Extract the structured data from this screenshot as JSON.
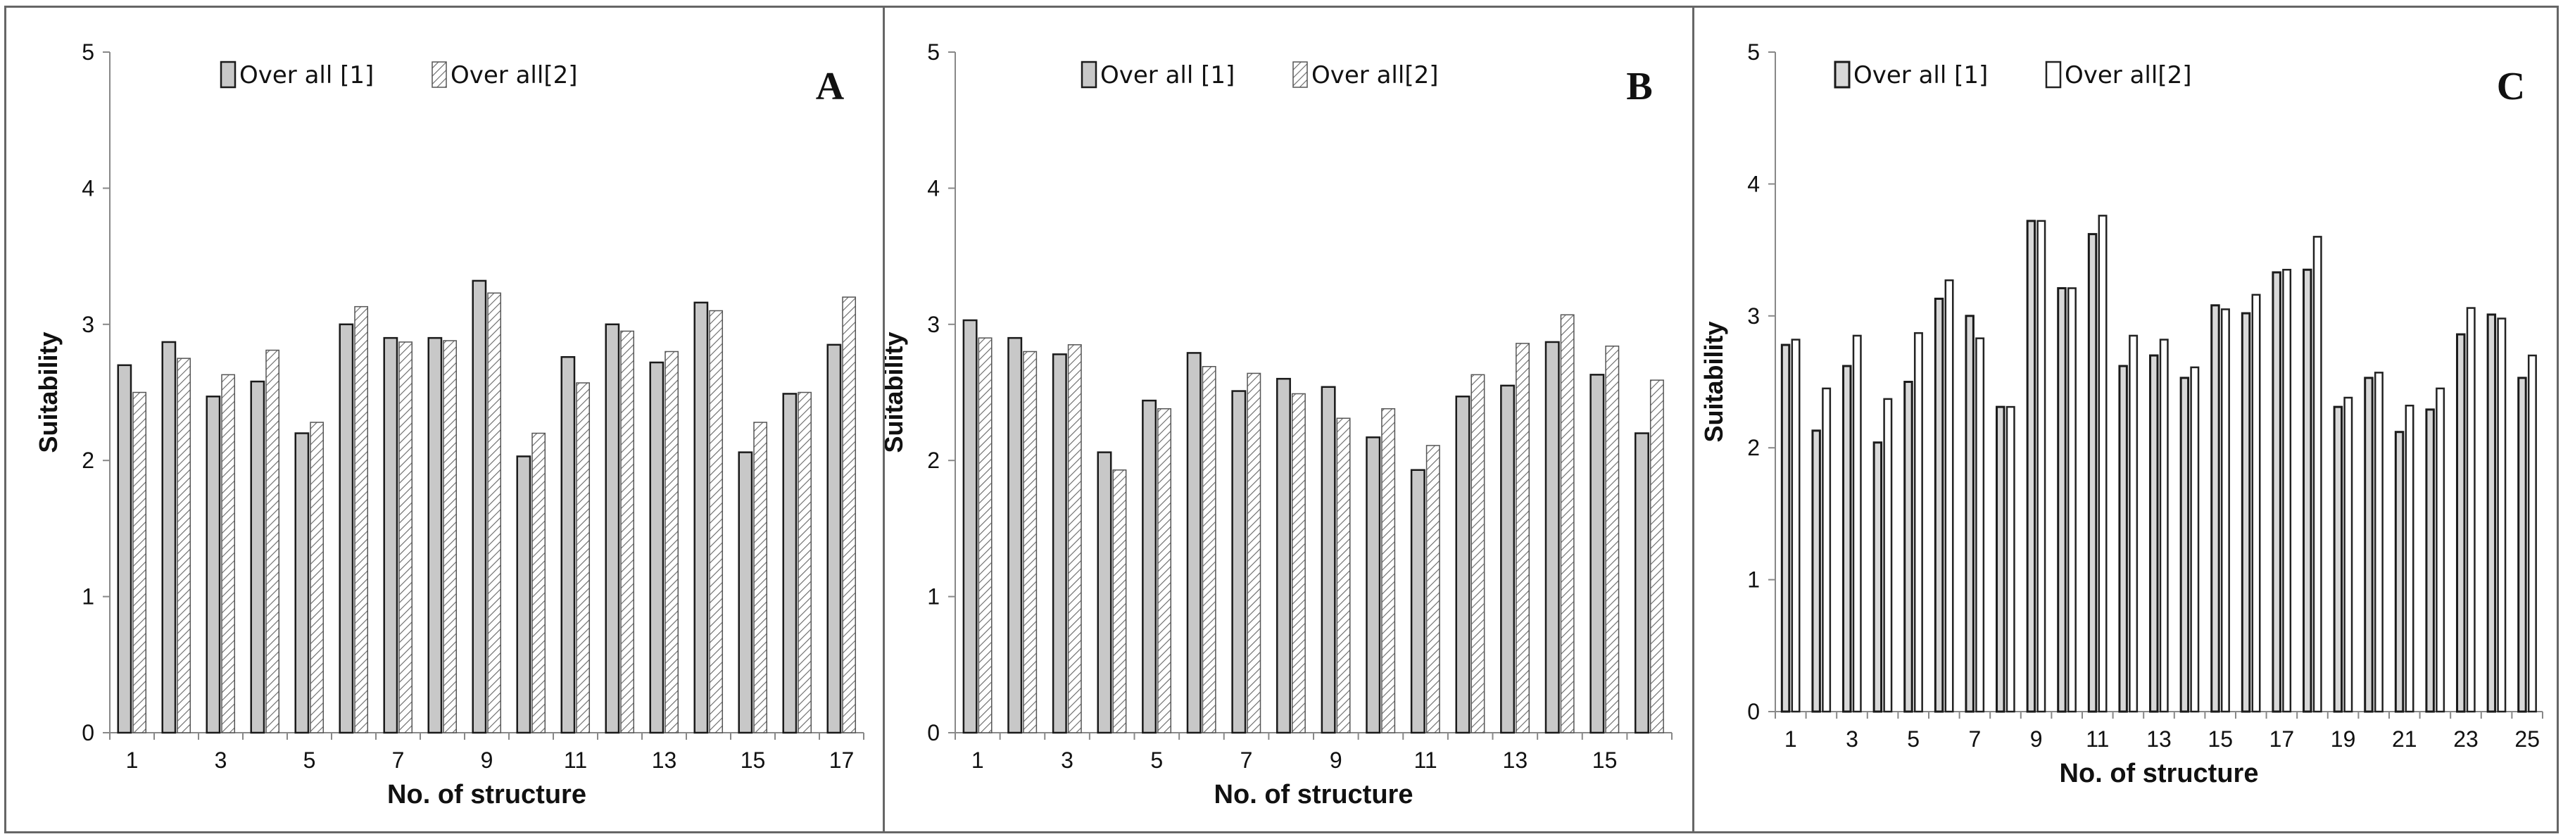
{
  "chart_data": [
    {
      "type": "bar",
      "panel_letter": "A",
      "xlabel": "No. of structure",
      "ylabel": "Suitability",
      "ylim": [
        0,
        5
      ],
      "yticks": [
        0,
        1,
        2,
        3,
        4,
        5
      ],
      "categories": [
        "1",
        "2",
        "3",
        "4",
        "5",
        "6",
        "7",
        "8",
        "9",
        "10",
        "11",
        "12",
        "13",
        "14",
        "15",
        "16",
        "17"
      ],
      "x_tick_labels_shown": [
        "1",
        "",
        "3",
        "",
        "5",
        "",
        "7",
        "",
        "9",
        "",
        "11",
        "",
        "13",
        "",
        "15",
        "",
        "17"
      ],
      "legend": [
        "Over all [1]",
        "Over all[2]"
      ],
      "series": [
        {
          "name": "Over all [1]",
          "values": [
            2.7,
            2.87,
            2.47,
            2.58,
            2.2,
            3.0,
            2.9,
            2.9,
            3.32,
            2.03,
            2.76,
            3.0,
            2.72,
            3.16,
            2.06,
            2.49,
            2.85
          ]
        },
        {
          "name": "Over all[2]",
          "values": [
            2.5,
            2.75,
            2.63,
            2.81,
            2.28,
            3.13,
            2.87,
            2.88,
            3.23,
            2.2,
            2.57,
            2.95,
            2.8,
            3.1,
            2.28,
            2.5,
            3.2
          ]
        }
      ]
    },
    {
      "type": "bar",
      "panel_letter": "B",
      "xlabel": "No. of structure",
      "ylabel": "Suitability",
      "ylim": [
        0,
        5
      ],
      "yticks": [
        0,
        1,
        2,
        3,
        4,
        5
      ],
      "categories": [
        "1",
        "2",
        "3",
        "4",
        "5",
        "6",
        "7",
        "8",
        "9",
        "10",
        "11",
        "12",
        "13",
        "14",
        "15",
        "16"
      ],
      "x_tick_labels_shown": [
        "1",
        "",
        "3",
        "",
        "5",
        "",
        "7",
        "",
        "9",
        "",
        "11",
        "",
        "13",
        "",
        "15",
        ""
      ],
      "legend": [
        "Over all [1]",
        "Over all[2]"
      ],
      "series": [
        {
          "name": "Over all [1]",
          "values": [
            3.03,
            2.9,
            2.78,
            2.06,
            2.44,
            2.79,
            2.51,
            2.6,
            2.54,
            2.17,
            1.93,
            2.47,
            2.55,
            2.87,
            2.63,
            2.2
          ]
        },
        {
          "name": "Over all[2]",
          "values": [
            2.9,
            2.8,
            2.85,
            1.93,
            2.38,
            2.69,
            2.64,
            2.49,
            2.31,
            2.38,
            2.11,
            2.63,
            2.86,
            3.07,
            2.84,
            2.59
          ]
        }
      ]
    },
    {
      "type": "bar",
      "panel_letter": "C",
      "xlabel": "No. of structure",
      "ylabel": "Suitability",
      "ylim": [
        0,
        5
      ],
      "yticks": [
        0,
        1,
        2,
        3,
        4,
        5
      ],
      "categories": [
        "1",
        "2",
        "3",
        "4",
        "5",
        "6",
        "7",
        "8",
        "9",
        "10",
        "11",
        "12",
        "13",
        "14",
        "15",
        "16",
        "17",
        "18",
        "19",
        "20",
        "21",
        "22",
        "23",
        "24",
        "25"
      ],
      "x_tick_labels_shown": [
        "1",
        "",
        "3",
        "",
        "5",
        "",
        "7",
        "",
        "9",
        "",
        "11",
        "",
        "13",
        "",
        "15",
        "",
        "17",
        "",
        "19",
        "",
        "21",
        "",
        "23",
        "",
        "25"
      ],
      "legend": [
        "Over all [1]",
        "Over all[2]"
      ],
      "series": [
        {
          "name": "Over all [1]",
          "values": [
            2.78,
            2.13,
            2.62,
            2.04,
            2.5,
            3.13,
            3.0,
            2.31,
            3.72,
            3.21,
            3.62,
            2.62,
            2.7,
            2.53,
            3.08,
            3.02,
            3.33,
            3.35,
            2.31,
            2.53,
            2.12,
            2.29,
            2.86,
            3.01,
            2.53
          ]
        },
        {
          "name": "Over all[2]",
          "values": [
            2.82,
            2.45,
            2.85,
            2.37,
            2.87,
            3.27,
            2.83,
            2.31,
            3.72,
            3.21,
            3.76,
            2.85,
            2.82,
            2.61,
            3.05,
            3.16,
            3.35,
            3.6,
            2.38,
            2.57,
            2.32,
            2.45,
            3.06,
            2.98,
            2.7
          ]
        }
      ]
    }
  ],
  "colors": {
    "series1_fill": "#c8c8c8",
    "series1_stroke": "#1a1a1a",
    "series2_fill": "#ffffff",
    "series2_stroke": "#555555",
    "axis": "#888888",
    "border": "#666666"
  },
  "legend_style": {
    "panel_A": "solid-and-hatched",
    "panel_B": "solid-and-hatched",
    "panel_C": "outlined-bars"
  }
}
